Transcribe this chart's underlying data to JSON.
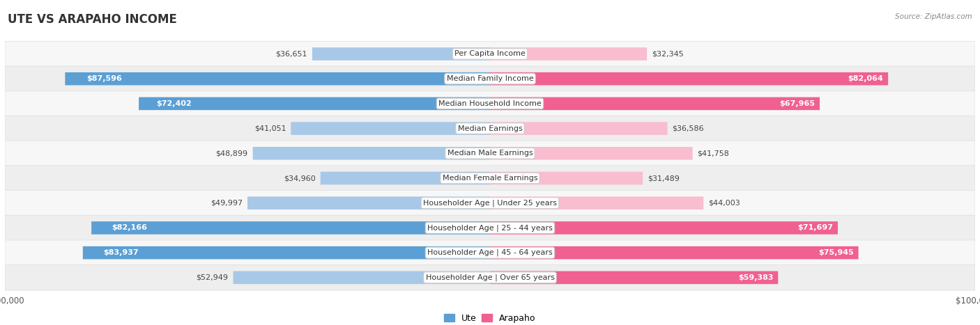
{
  "title": "UTE VS ARAPAHO INCOME",
  "source": "Source: ZipAtlas.com",
  "categories": [
    "Per Capita Income",
    "Median Family Income",
    "Median Household Income",
    "Median Earnings",
    "Median Male Earnings",
    "Median Female Earnings",
    "Householder Age | Under 25 years",
    "Householder Age | 25 - 44 years",
    "Householder Age | 45 - 64 years",
    "Householder Age | Over 65 years"
  ],
  "ute_values": [
    36651,
    87596,
    72402,
    41051,
    48899,
    34960,
    49997,
    82166,
    83937,
    52949
  ],
  "arapaho_values": [
    32345,
    82064,
    67965,
    36586,
    41758,
    31489,
    44003,
    71697,
    75945,
    59383
  ],
  "ute_labels": [
    "$36,651",
    "$87,596",
    "$72,402",
    "$41,051",
    "$48,899",
    "$34,960",
    "$49,997",
    "$82,166",
    "$83,937",
    "$52,949"
  ],
  "arapaho_labels": [
    "$32,345",
    "$82,064",
    "$67,965",
    "$36,586",
    "$41,758",
    "$31,489",
    "$44,003",
    "$71,697",
    "$75,945",
    "$59,383"
  ],
  "max_value": 100000,
  "ute_color_light": "#a8c8e8",
  "ute_color_dark": "#5b9fd4",
  "arapaho_color_light": "#f9bdd0",
  "arapaho_color_dark": "#f06090",
  "row_bg_light": "#f7f7f7",
  "row_bg_dark": "#eeeeee",
  "bar_height": 0.52,
  "title_fontsize": 12,
  "label_fontsize": 8.0,
  "value_fontsize": 8.0,
  "axis_label_fontsize": 8.5,
  "threshold": 55000
}
